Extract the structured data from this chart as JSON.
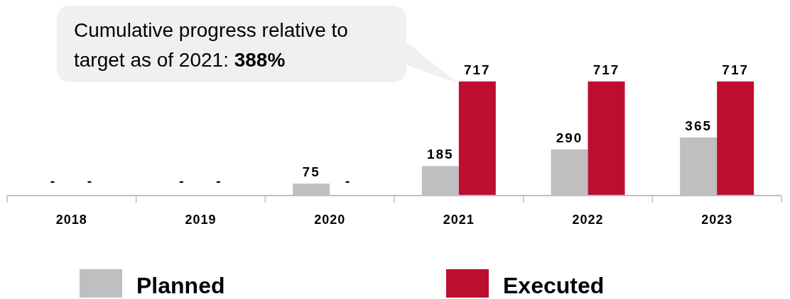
{
  "chart_data": {
    "type": "bar",
    "categories": [
      "2018",
      "2019",
      "2020",
      "2021",
      "2022",
      "2023"
    ],
    "series": [
      {
        "name": "Planned",
        "color": "#bfbfbf",
        "values": [
          null,
          null,
          75,
          185,
          290,
          365
        ],
        "value_labels": [
          "-",
          "-",
          "75",
          "185",
          "290",
          "365"
        ]
      },
      {
        "name": "Executed",
        "color": "#be0e2f",
        "values": [
          null,
          null,
          null,
          717,
          717,
          717
        ],
        "value_labels": [
          "-",
          "-",
          "-",
          "717",
          "717",
          "717"
        ]
      }
    ],
    "annotations": [
      "Cumulative progress relative to target as of 2021: 388%"
    ],
    "legend": "bottom"
  }
}
